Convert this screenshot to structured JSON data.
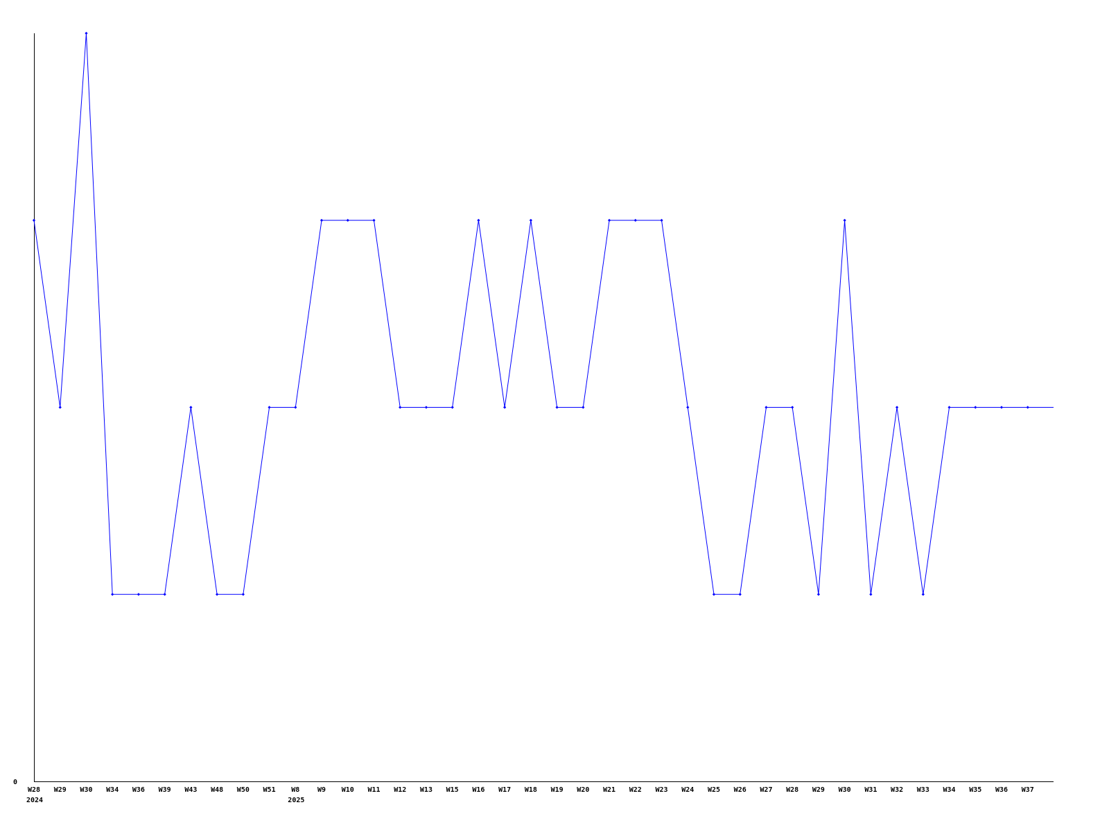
{
  "chart_data": {
    "type": "line",
    "title": "",
    "xlabel": "",
    "ylabel": "",
    "ylim": [
      0,
      4
    ],
    "y_tick_labels": [
      "0"
    ],
    "grid": false,
    "line_color": "#0000ff",
    "axis_color": "#000000",
    "categories": [
      {
        "week": "W28",
        "year": "2024"
      },
      {
        "week": "W29"
      },
      {
        "week": "W30"
      },
      {
        "week": "W34"
      },
      {
        "week": "W36"
      },
      {
        "week": "W39"
      },
      {
        "week": "W43"
      },
      {
        "week": "W48"
      },
      {
        "week": "W50"
      },
      {
        "week": "W51"
      },
      {
        "week": "W8",
        "year": "2025"
      },
      {
        "week": "W9"
      },
      {
        "week": "W10"
      },
      {
        "week": "W11"
      },
      {
        "week": "W12"
      },
      {
        "week": "W13"
      },
      {
        "week": "W15"
      },
      {
        "week": "W16"
      },
      {
        "week": "W17"
      },
      {
        "week": "W18"
      },
      {
        "week": "W19"
      },
      {
        "week": "W20"
      },
      {
        "week": "W21"
      },
      {
        "week": "W22"
      },
      {
        "week": "W23"
      },
      {
        "week": "W24"
      },
      {
        "week": "W25"
      },
      {
        "week": "W26"
      },
      {
        "week": "W27"
      },
      {
        "week": "W28"
      },
      {
        "week": "W29"
      },
      {
        "week": "W30"
      },
      {
        "week": "W31"
      },
      {
        "week": "W32"
      },
      {
        "week": "W33"
      },
      {
        "week": "W34"
      },
      {
        "week": "W35"
      },
      {
        "week": "W36"
      },
      {
        "week": "W37"
      }
    ],
    "values": [
      3,
      2,
      4,
      1,
      1,
      1,
      2,
      1,
      1,
      2,
      2,
      3,
      3,
      3,
      2,
      2,
      2,
      3,
      2,
      3,
      2,
      2,
      3,
      3,
      3,
      2,
      1,
      1,
      2,
      2,
      1,
      3,
      1,
      2,
      1,
      2,
      2,
      2,
      2
    ]
  }
}
